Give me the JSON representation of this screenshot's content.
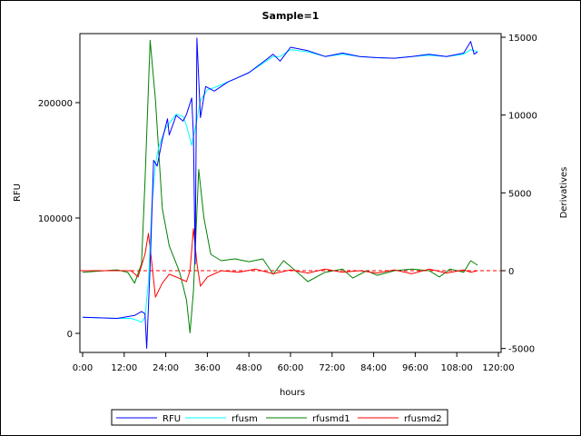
{
  "chart_data": {
    "type": "line",
    "title": "Sample=1",
    "xlabel": "hours",
    "ylabel": "RFU",
    "y2label": "Derivatives",
    "xlim": [
      0,
      120
    ],
    "ylim": [
      -15000,
      262000
    ],
    "y2lim": [
      -5000,
      15500
    ],
    "x_ticks": [
      0,
      12,
      24,
      36,
      48,
      60,
      72,
      84,
      96,
      108,
      120
    ],
    "x_tick_labels": [
      "0:00",
      "12:00",
      "24:00",
      "36:00",
      "48:00",
      "60:00",
      "72:00",
      "84:00",
      "96:00",
      "108:00",
      "120:00"
    ],
    "y_ticks": [
      0,
      100000,
      200000
    ],
    "y_tick_labels": [
      "0",
      "100000",
      "200000"
    ],
    "y2_ticks": [
      -5000,
      0,
      5000,
      10000,
      15000
    ],
    "y2_tick_labels": [
      "-5000",
      "0",
      "5000",
      "10000",
      "15000"
    ],
    "reference_line": {
      "axis": "y2",
      "value": 0,
      "style": "dashed",
      "color": "#ff0000"
    },
    "grid": false,
    "legend_placement": "bottom",
    "series": [
      {
        "name": "RFU",
        "axis": "y",
        "color": "#0000ff",
        "x": [
          0,
          10,
          15,
          17,
          18,
          18.5,
          19.5,
          20.5,
          21.5,
          23,
          24.5,
          25,
          27,
          29,
          30,
          31.5,
          32,
          32.5,
          33,
          34,
          35.5,
          38,
          42,
          45,
          48,
          52,
          55,
          57,
          60,
          65,
          70,
          75,
          80,
          85,
          90,
          95,
          100,
          105,
          110,
          112,
          113,
          114
        ],
        "y": [
          14000,
          13000,
          15500,
          19000,
          17000,
          -13000,
          59000,
          150000,
          145000,
          168000,
          186000,
          172000,
          189000,
          184000,
          190000,
          204000,
          171000,
          60000,
          256000,
          187000,
          214000,
          210000,
          218000,
          222000,
          226000,
          235000,
          242000,
          236000,
          248000,
          245000,
          240000,
          243000,
          240000,
          239000,
          238500,
          240000,
          242000,
          240000,
          243000,
          253000,
          242000,
          244000
        ]
      },
      {
        "name": "rfusm",
        "axis": "y",
        "color": "#00ffff",
        "x": [
          0,
          10,
          14,
          16,
          17,
          18,
          19,
          20,
          21,
          22,
          24,
          26,
          27,
          29,
          30,
          31.5,
          33,
          34,
          36,
          38,
          42,
          45,
          48,
          52,
          55,
          57,
          60,
          65,
          70,
          75,
          80,
          85,
          90,
          95,
          100,
          105,
          110,
          112,
          114
        ],
        "y": [
          14000,
          13000,
          13000,
          11000,
          9500,
          14000,
          45000,
          110000,
          147000,
          162000,
          178000,
          186000,
          190000,
          188000,
          180000,
          163000,
          185000,
          202000,
          211000,
          213000,
          218000,
          222000,
          226000,
          234000,
          240000,
          240000,
          246000,
          244000,
          240000,
          242000,
          240000,
          239000,
          238500,
          240000,
          241000,
          240000,
          242000,
          246000,
          244000
        ]
      },
      {
        "name": "rfusmd1",
        "axis": "y2",
        "color": "#008000",
        "x": [
          0,
          10,
          13,
          15,
          17,
          18,
          19.5,
          21,
          23,
          25,
          28,
          30,
          31,
          32,
          33.5,
          35,
          37,
          40,
          44,
          48,
          52,
          55,
          58,
          62,
          65,
          70,
          75,
          78,
          82,
          85,
          90,
          95,
          100,
          103,
          106,
          110,
          112,
          114
        ],
        "y": [
          -100,
          50,
          -100,
          -800,
          450,
          5700,
          14800,
          11000,
          4000,
          1600,
          -100,
          -1900,
          -4000,
          -1300,
          6500,
          3400,
          1050,
          640,
          760,
          580,
          760,
          -230,
          640,
          -100,
          -700,
          -100,
          100,
          -470,
          0,
          -300,
          0,
          100,
          0,
          -400,
          100,
          -100,
          640,
          350
        ]
      },
      {
        "name": "rfusmd2",
        "axis": "y2",
        "color": "#ff0000",
        "x": [
          0,
          14,
          16,
          18,
          19,
          20,
          21,
          23,
          25,
          27,
          30,
          31,
          32,
          33,
          34,
          36,
          40,
          45,
          50,
          55,
          60,
          65,
          70,
          75,
          80,
          85,
          90,
          95,
          100,
          105,
          110,
          112,
          114
        ],
        "y": [
          0,
          0,
          -400,
          1050,
          2400,
          470,
          -1700,
          -800,
          -230,
          -400,
          -700,
          0,
          2700,
          470,
          -1000,
          -400,
          0,
          -100,
          100,
          -200,
          50,
          -150,
          100,
          -100,
          0,
          -150,
          50,
          -200,
          100,
          -150,
          50,
          -100,
          0
        ]
      }
    ]
  }
}
